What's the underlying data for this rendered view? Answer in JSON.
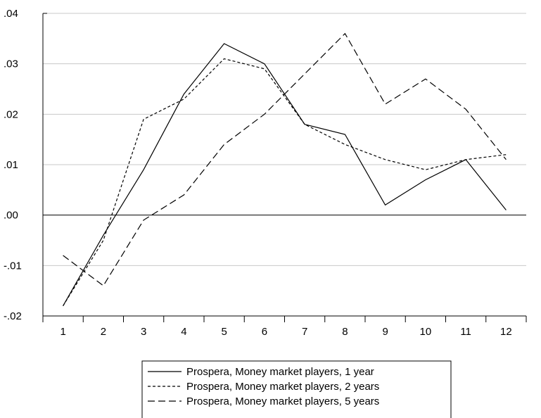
{
  "chart_data": {
    "type": "line",
    "title": "",
    "xlabel": "",
    "ylabel": "",
    "x": [
      1,
      2,
      3,
      4,
      5,
      6,
      7,
      8,
      9,
      10,
      11,
      12
    ],
    "x_tick_labels": [
      "1",
      "2",
      "3",
      "4",
      "5",
      "6",
      "7",
      "8",
      "9",
      "10",
      "11",
      "12"
    ],
    "ylim": [
      -0.02,
      0.04
    ],
    "y_ticks": [
      -0.02,
      -0.01,
      0.0,
      0.01,
      0.02,
      0.03,
      0.04
    ],
    "y_tick_labels": [
      "-.02",
      "-.01",
      ".00",
      ".01",
      ".02",
      ".03",
      ".04"
    ],
    "grid": "horizontal",
    "zero_line": true,
    "legend_position": "bottom-center",
    "series": [
      {
        "name": "Prospera, Money market players, 1 year",
        "dash": "solid",
        "color": "#000000",
        "values": [
          -0.018,
          -0.004,
          0.009,
          0.024,
          0.034,
          0.03,
          0.018,
          0.016,
          0.002,
          0.007,
          0.011,
          0.001
        ]
      },
      {
        "name": "Prospera, Money market players, 2 years",
        "dash": "short-dash",
        "color": "#000000",
        "values": [
          -0.018,
          -0.005,
          0.019,
          0.023,
          0.031,
          0.029,
          0.018,
          0.014,
          0.011,
          0.009,
          0.011,
          0.012
        ]
      },
      {
        "name": "Prospera, Money market players, 5 years",
        "dash": "long-dash",
        "color": "#000000",
        "values": [
          -0.008,
          -0.014,
          -0.001,
          0.004,
          0.014,
          0.02,
          0.028,
          0.036,
          0.022,
          0.027,
          0.021,
          0.011
        ]
      }
    ]
  }
}
